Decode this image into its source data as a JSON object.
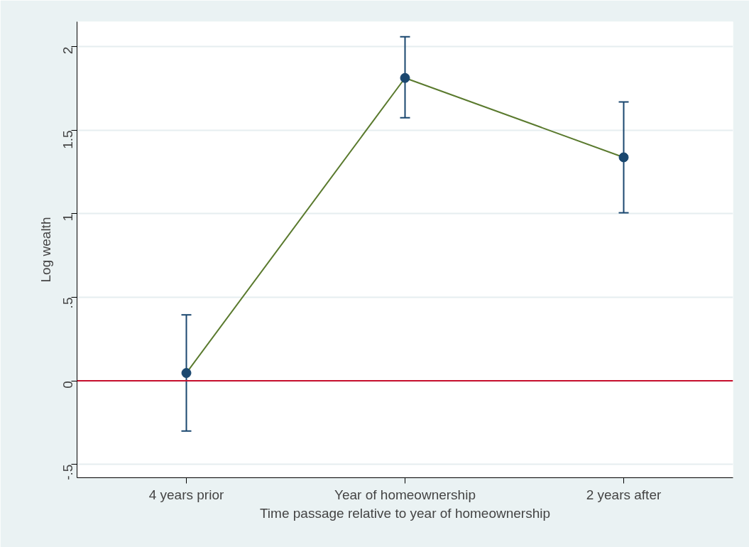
{
  "chart_data": {
    "type": "scatter",
    "xlabel": "Time passage relative to year of homeownership",
    "ylabel": "Log wealth",
    "categories": [
      "4 years prior",
      "Year of homeownership",
      "2 years after"
    ],
    "series": [
      {
        "type": "line",
        "marker": "none",
        "color": "#5a7a2e",
        "values": [
          0.047,
          1.813,
          1.338
        ]
      },
      {
        "color": "#1a476f",
        "values": [
          0.047,
          1.813,
          1.338
        ],
        "errors": [
          [
            -0.3,
            0.395
          ],
          [
            1.575,
            2.06
          ],
          [
            1.006,
            1.669
          ]
        ]
      }
    ],
    "marker": "circle",
    "ylim": [
      -0.58,
      2.15
    ],
    "yticks": [
      {
        "value": -0.5,
        "label": "-.5"
      },
      0,
      {
        "value": 0.5,
        "label": ".5"
      },
      1,
      1.5,
      2
    ],
    "ref_lines": [
      {
        "axis": "y",
        "value": 0,
        "color": "#c8102e"
      }
    ],
    "grid": "y"
  }
}
